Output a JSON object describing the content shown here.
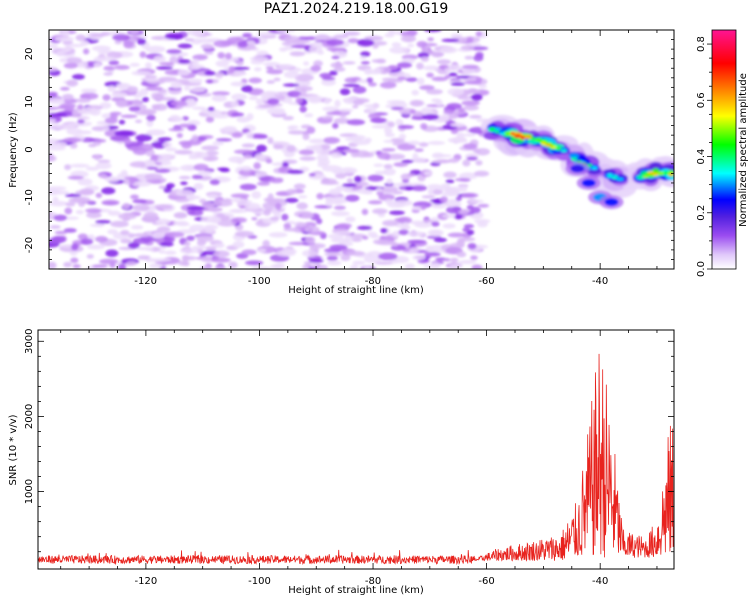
{
  "title": "PAZ1.2024.219.18.00.G19",
  "chart_data": [
    {
      "type": "heatmap",
      "xlabel": "Height of straight line (km)",
      "ylabel": "Frequency (Hz)",
      "xlim": [
        -137,
        -27
      ],
      "ylim": [
        -25,
        25
      ],
      "xticks": [
        -120,
        -100,
        -80,
        -60,
        -40
      ],
      "yticks": [
        -20,
        -10,
        0,
        10,
        20
      ],
      "colorbar": {
        "label": "Normalized spectral amplitude",
        "range": [
          0,
          0.85
        ],
        "ticks": [
          0.0,
          0.2,
          0.4,
          0.6,
          0.8
        ],
        "colormap": [
          "#ffffff",
          "#d8b4f8",
          "#8a2be2",
          "#4a1fd0",
          "#0000ff",
          "#00ffff",
          "#00ff00",
          "#ffff00",
          "#ff7f00",
          "#ff0000",
          "#ff1493"
        ]
      },
      "ridge": [
        {
          "x": -59,
          "y": 4,
          "amp": 0.45
        },
        {
          "x": -55,
          "y": 3,
          "amp": 0.75
        },
        {
          "x": -51,
          "y": 2,
          "amp": 0.7
        },
        {
          "x": -47,
          "y": 0,
          "amp": 0.5
        },
        {
          "x": -43,
          "y": -3,
          "amp": 0.45
        },
        {
          "x": -39,
          "y": -5,
          "amp": 0.4
        },
        {
          "x": -35,
          "y": -7,
          "amp": 0.3
        },
        {
          "x": -31,
          "y": -5,
          "amp": 0.6
        },
        {
          "x": -28,
          "y": -5,
          "amp": 0.75
        }
      ]
    },
    {
      "type": "line",
      "xlabel": "Height of straight line (km)",
      "ylabel": "SNR (10 * v/v)",
      "xlim": [
        -139,
        -27
      ],
      "ylim": [
        -30,
        3150
      ],
      "xticks": [
        -120,
        -100,
        -80,
        -60,
        -40
      ],
      "yticks": [
        1000,
        2000,
        3000
      ],
      "series_color": "#e8231e",
      "envelope": [
        {
          "x": -139,
          "y": 110
        },
        {
          "x": -62,
          "y": 110
        },
        {
          "x": -58,
          "y": 250
        },
        {
          "x": -52,
          "y": 350
        },
        {
          "x": -47,
          "y": 450
        },
        {
          "x": -44,
          "y": 900
        },
        {
          "x": -42,
          "y": 1900
        },
        {
          "x": -40,
          "y": 3150
        },
        {
          "x": -38,
          "y": 2000
        },
        {
          "x": -36,
          "y": 500
        },
        {
          "x": -32,
          "y": 400
        },
        {
          "x": -30,
          "y": 650
        },
        {
          "x": -28,
          "y": 1800
        },
        {
          "x": -27,
          "y": 2100
        }
      ]
    }
  ]
}
